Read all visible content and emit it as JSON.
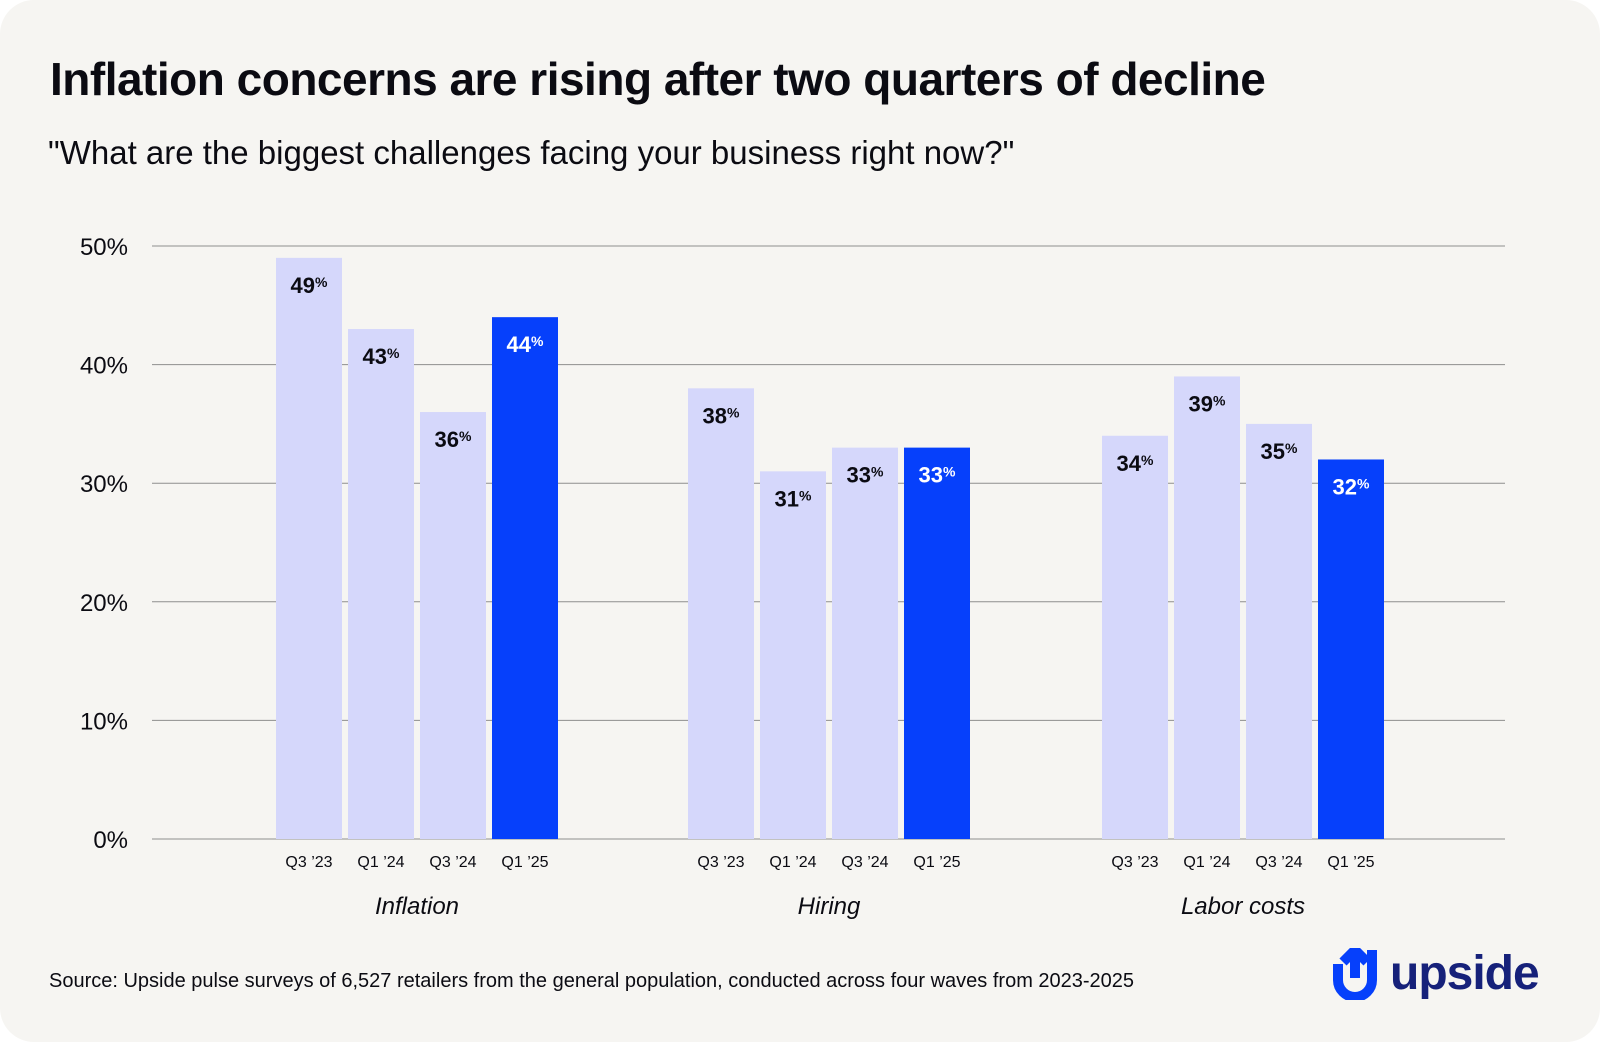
{
  "title": "Inflation concerns are rising after two quarters of decline",
  "subtitle": "\"What are the biggest challenges facing your business right now?\"",
  "source": "Source: Upside pulse surveys of 6,527 retailers from the general population, conducted across four waves from 2023-2025",
  "logo": {
    "text": "upside",
    "icon": "upside-logo-icon"
  },
  "colors": {
    "background": "#f6f5f2",
    "bar_light": "#d5d7fb",
    "bar_highlight": "#0640fb",
    "label_dark": "#0b0b12",
    "label_light": "#ffffff",
    "grid": "#8e8e8e",
    "logo": "#16217a",
    "logo_icon": "#0640fb"
  },
  "chart_data": {
    "type": "bar",
    "ylim": [
      0,
      50
    ],
    "yticks": [
      0,
      10,
      20,
      30,
      40,
      50
    ],
    "ytick_labels": [
      "0%",
      "10%",
      "20%",
      "30%",
      "40%",
      "50%"
    ],
    "grid": true,
    "periods": [
      "Q3 ’23",
      "Q1 ’24",
      "Q3 ’24",
      "Q1 ’25"
    ],
    "highlight_period_index": 3,
    "value_suffix": "%",
    "groups": [
      {
        "name": "Inflation",
        "values": [
          49,
          43,
          36,
          44
        ]
      },
      {
        "name": "Hiring",
        "values": [
          38,
          31,
          33,
          33
        ]
      },
      {
        "name": "Labor costs",
        "values": [
          34,
          39,
          35,
          32
        ]
      }
    ]
  }
}
